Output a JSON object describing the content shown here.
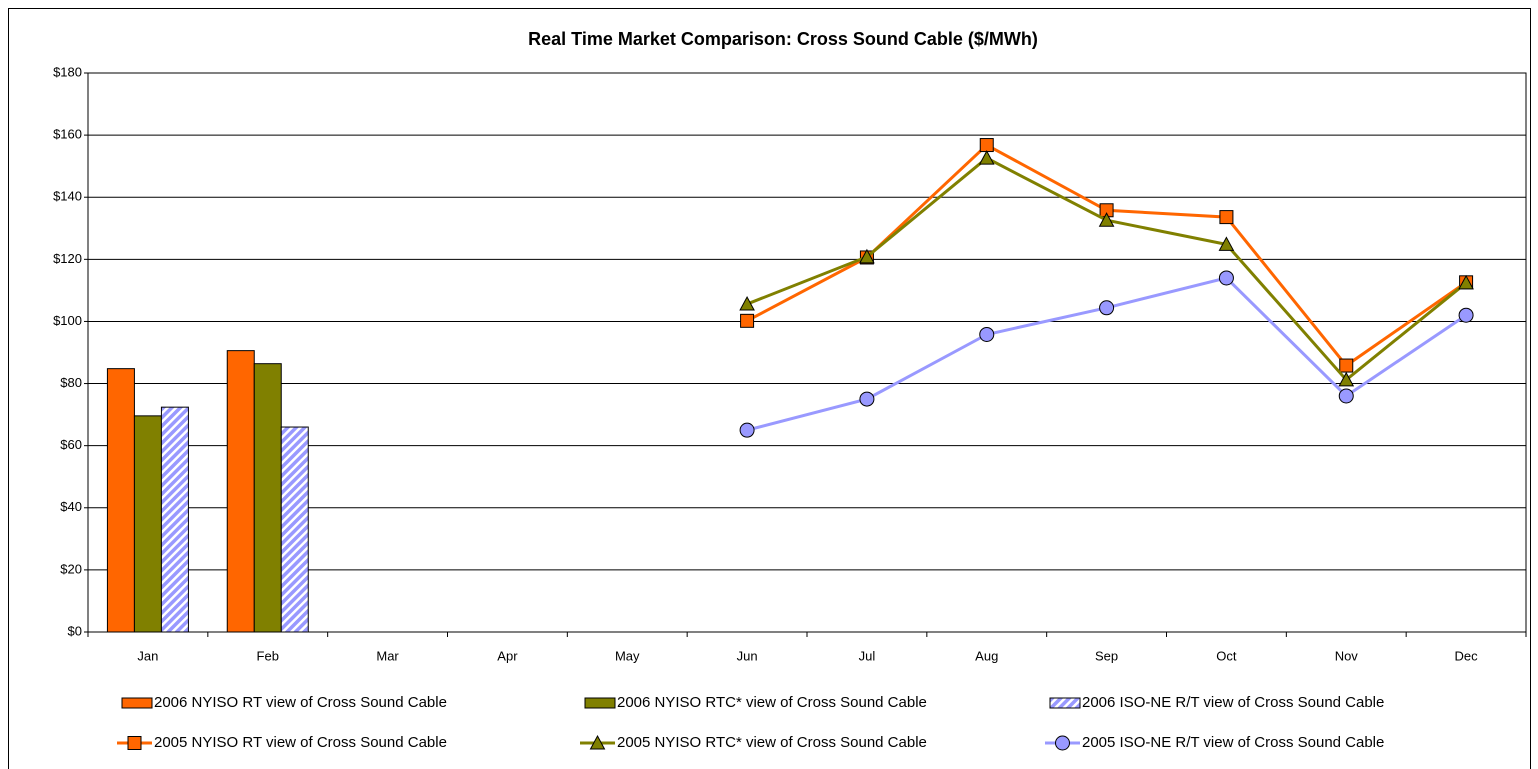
{
  "chart_data": {
    "type": "bar",
    "title": "Real Time Market Comparison: Cross Sound Cable ($/MWh)",
    "categories": [
      "Jan",
      "Feb",
      "Mar",
      "Apr",
      "May",
      "Jun",
      "Jul",
      "Aug",
      "Sep",
      "Oct",
      "Nov",
      "Dec"
    ],
    "ylim": [
      0,
      180
    ],
    "yticks": [
      {
        "value": 0,
        "label": "$0"
      },
      {
        "value": 20,
        "label": "$20"
      },
      {
        "value": 40,
        "label": "$40"
      },
      {
        "value": 60,
        "label": "$60"
      },
      {
        "value": 80,
        "label": "$80"
      },
      {
        "value": 100,
        "label": "$100"
      },
      {
        "value": 120,
        "label": "$120"
      },
      {
        "value": 140,
        "label": "$140"
      },
      {
        "value": 160,
        "label": "$160"
      },
      {
        "value": 180,
        "label": "$180"
      }
    ],
    "grid": true,
    "legend": "bottom",
    "series": [
      {
        "name": "2006 NYISO RT view of Cross Sound Cable",
        "type": "bar",
        "color": "#ff6600",
        "values": [
          84.8,
          90.6,
          null,
          null,
          null,
          null,
          null,
          null,
          null,
          null,
          null,
          null
        ]
      },
      {
        "name": "2006 NYISO RTC* view of Cross Sound Cable",
        "type": "bar",
        "color": "#808000",
        "values": [
          69.6,
          86.4,
          null,
          null,
          null,
          null,
          null,
          null,
          null,
          null,
          null,
          null
        ]
      },
      {
        "name": "2006 ISO-NE R/T view of Cross Sound Cable",
        "type": "bar",
        "color": "#9999ff",
        "hatch": true,
        "values": [
          72.4,
          66.0,
          null,
          null,
          null,
          null,
          null,
          null,
          null,
          null,
          null,
          null
        ]
      },
      {
        "name": "2005 NYISO RT view of Cross Sound Cable",
        "type": "line",
        "color": "#ff6600",
        "marker": "square",
        "values": [
          null,
          null,
          null,
          null,
          null,
          100.2,
          120.6,
          156.8,
          135.8,
          133.6,
          85.8,
          112.6
        ]
      },
      {
        "name": "2005 NYISO RTC* view of Cross Sound Cable",
        "type": "line",
        "color": "#808000",
        "marker": "triangle",
        "values": [
          null,
          null,
          null,
          null,
          null,
          105.6,
          120.8,
          152.6,
          132.6,
          124.8,
          81.2,
          112.4
        ]
      },
      {
        "name": "2005 ISO-NE R/T view of Cross Sound Cable",
        "type": "line",
        "color": "#9999ff",
        "marker": "circle",
        "values": [
          null,
          null,
          null,
          null,
          null,
          65.0,
          75.0,
          95.8,
          104.4,
          114.0,
          76.0,
          102.0
        ]
      }
    ]
  }
}
